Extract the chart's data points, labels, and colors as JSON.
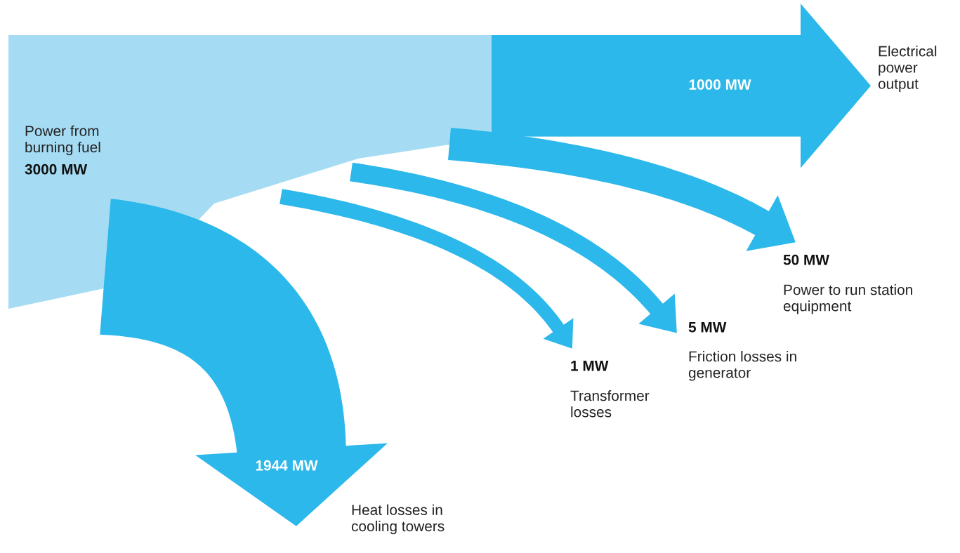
{
  "chart_data": {
    "type": "other",
    "categories": [
      "Electrical power output",
      "Power to run station equipment",
      "Friction losses in generator",
      "Transformer losses",
      "Heat losses in cooling towers"
    ],
    "values": [
      1000,
      50,
      5,
      1,
      1944
    ],
    "value_labels": [
      "1000 MW",
      "50 MW",
      "5 MW",
      "1 MW",
      "1944 MW"
    ],
    "color": "#a6dcf3",
    "colors": [
      "#2cb8ea",
      "#2cb8ea",
      "#2cb8ea",
      "#2cb8ea",
      "#2cb8ea"
    ],
    "annotations": [
      "Power from burning fuel",
      "3000 MW"
    ]
  }
}
